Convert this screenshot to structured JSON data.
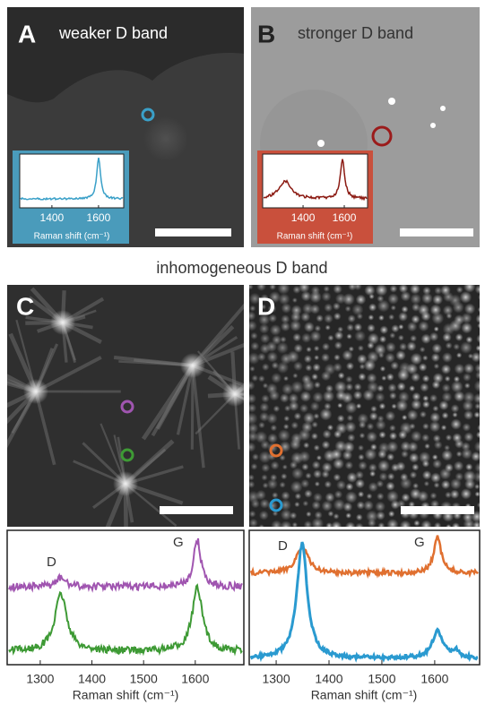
{
  "section_title": "inhomogeneous D band",
  "panels": [
    {
      "label": "A",
      "title": "weaker D band",
      "inset": {
        "xlim": [
          1262,
          1708
        ],
        "xticks": [
          1400,
          1600
        ],
        "xlabel": "Raman shift (cm⁻¹)"
      }
    },
    {
      "label": "B",
      "title": "stronger D band",
      "inset": {
        "xlim": [
          1204,
          1713
        ],
        "xticks": [
          1400,
          1600
        ],
        "xlabel": "Raman shift (cm⁻¹)"
      }
    },
    {
      "label": "C"
    },
    {
      "label": "D"
    }
  ],
  "spectra": [
    {
      "xlim": [
        1236,
        1694
      ],
      "xticks": [
        1300,
        1400,
        1500,
        1600
      ],
      "xlabel": "Raman shift (cm⁻¹)",
      "peak_labels": [
        "D",
        "G"
      ]
    },
    {
      "xlim": [
        1249,
        1685
      ],
      "xticks": [
        1300,
        1400,
        1500,
        1600
      ],
      "xlabel": "Raman shift (cm⁻¹)",
      "peak_labels": [
        "D",
        "G"
      ]
    }
  ]
}
